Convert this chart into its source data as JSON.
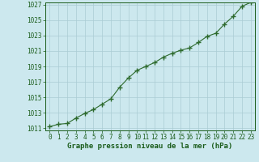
{
  "x": [
    0,
    1,
    2,
    3,
    4,
    5,
    6,
    7,
    8,
    9,
    10,
    11,
    12,
    13,
    14,
    15,
    16,
    17,
    18,
    19,
    20,
    21,
    22,
    23
  ],
  "y": [
    1011.2,
    1011.5,
    1011.6,
    1012.3,
    1012.9,
    1013.4,
    1014.1,
    1014.8,
    1016.3,
    1017.5,
    1018.5,
    1019.0,
    1019.5,
    1020.2,
    1020.7,
    1021.1,
    1021.4,
    1022.1,
    1022.9,
    1023.3,
    1024.5,
    1025.5,
    1026.8,
    1027.3
  ],
  "ylim": [
    1011,
    1027
  ],
  "yticks": [
    1011,
    1013,
    1015,
    1017,
    1019,
    1021,
    1023,
    1025,
    1027
  ],
  "xticks": [
    0,
    1,
    2,
    3,
    4,
    5,
    6,
    7,
    8,
    9,
    10,
    11,
    12,
    13,
    14,
    15,
    16,
    17,
    18,
    19,
    20,
    21,
    22,
    23
  ],
  "xlabel": "Graphe pression niveau de la mer (hPa)",
  "line_color": "#2d6a2d",
  "marker": "+",
  "marker_size": 4,
  "bg_color": "#cce8ee",
  "grid_color": "#aaccd4",
  "text_color": "#1a5c1a",
  "label_fontsize": 5.5,
  "xlabel_fontsize": 6.5
}
